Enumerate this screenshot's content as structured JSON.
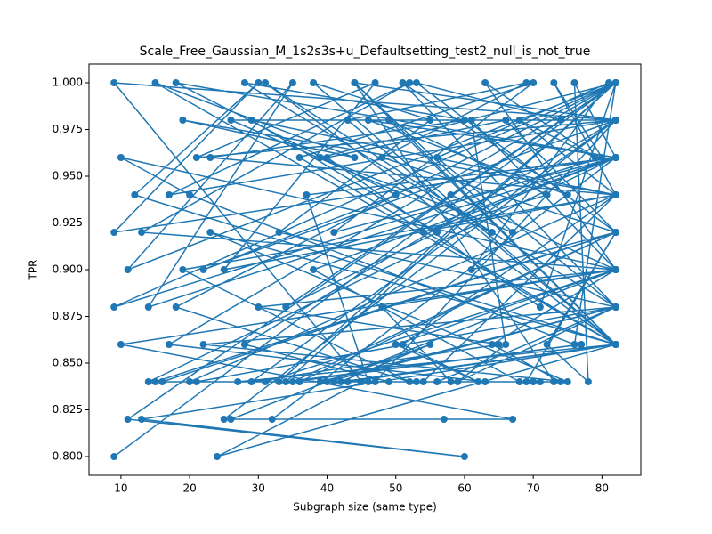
{
  "chart_data": {
    "type": "line",
    "title": "Scale_Free_Gaussian_M_1s2s3s+u_Defaultsetting_test2_null_is_not_true",
    "xlabel": "Subgraph size (same type)",
    "ylabel": "TPR",
    "xlim": [
      5.35,
      85.65
    ],
    "ylim": [
      0.79,
      1.01
    ],
    "xticks": [
      10,
      20,
      30,
      40,
      50,
      60,
      70,
      80
    ],
    "yticks": [
      {
        "value": 0.8,
        "label": "0.800"
      },
      {
        "value": 0.825,
        "label": "0.825"
      },
      {
        "value": 0.85,
        "label": "0.850"
      },
      {
        "value": 0.875,
        "label": "0.875"
      },
      {
        "value": 0.9,
        "label": "0.900"
      },
      {
        "value": 0.925,
        "label": "0.925"
      },
      {
        "value": 0.95,
        "label": "0.950"
      },
      {
        "value": 0.975,
        "label": "0.975"
      },
      {
        "value": 1.0,
        "label": "1.000"
      }
    ],
    "series": [
      {
        "color": "#1f77b4",
        "x": [
          9,
          82,
          11,
          60,
          13,
          82,
          24,
          45,
          9,
          82,
          25,
          67,
          10,
          82,
          26,
          57,
          32,
          82,
          14,
          70,
          15,
          82,
          16,
          63,
          17,
          82,
          18,
          52,
          19,
          82,
          20,
          41,
          21,
          82,
          22,
          75,
          23,
          82,
          27,
          49,
          28,
          82,
          29,
          65,
          30,
          82,
          31,
          53,
          33,
          82,
          34,
          77,
          35,
          82,
          36,
          46,
          37,
          82,
          38,
          68,
          39,
          82,
          40,
          55,
          42,
          82,
          43,
          73,
          44,
          82,
          47,
          58,
          48,
          82,
          50,
          62,
          51,
          82,
          54,
          71,
          56,
          82,
          59,
          66,
          61,
          82,
          64,
          74,
          69,
          82,
          72,
          78,
          76,
          82,
          9,
          30,
          12,
          82,
          15,
          44,
          19,
          82,
          23,
          60,
          28,
          82,
          33,
          55,
          38,
          82,
          43,
          69,
          48,
          82,
          53,
          74,
          58,
          82,
          63,
          79,
          68,
          82,
          73,
          80,
          9,
          82,
          11,
          35,
          14,
          82,
          18,
          50,
          22,
          82,
          26,
          64,
          31,
          82,
          36,
          70,
          41,
          82,
          46,
          75,
          51,
          82,
          56,
          81,
          61,
          82,
          66,
          40,
          71,
          82,
          76,
          20,
          10,
          82,
          13,
          52,
          17,
          82,
          21,
          47,
          25,
          82,
          29,
          56,
          34,
          82,
          39,
          67,
          44,
          82,
          49,
          72,
          54,
          82
        ],
        "values": [
          0.8,
          1.0,
          0.82,
          0.8,
          0.82,
          0.86,
          0.8,
          0.84,
          1.0,
          0.98,
          0.82,
          0.82,
          0.86,
          0.9,
          0.82,
          0.82,
          0.82,
          0.96,
          0.84,
          0.84,
          0.84,
          0.92,
          0.84,
          0.84,
          0.86,
          1.0,
          0.88,
          0.84,
          0.9,
          0.94,
          0.84,
          0.84,
          0.84,
          0.88,
          0.86,
          0.84,
          0.92,
          0.86,
          0.84,
          0.84,
          0.86,
          0.98,
          0.84,
          0.86,
          0.88,
          0.9,
          0.84,
          0.84,
          0.84,
          1.0,
          0.84,
          0.86,
          0.84,
          0.92,
          0.84,
          0.84,
          0.94,
          0.96,
          0.9,
          0.84,
          0.84,
          0.88,
          0.84,
          0.86,
          0.84,
          0.86,
          0.84,
          0.84,
          1.0,
          0.98,
          0.84,
          0.84,
          0.88,
          0.9,
          0.86,
          0.84,
          0.86,
          0.94,
          0.84,
          0.84,
          0.84,
          0.88,
          0.84,
          0.86,
          0.98,
          0.9,
          0.86,
          0.84,
          0.84,
          0.92,
          0.86,
          0.84,
          1.0,
          0.96,
          0.92,
          1.0,
          0.94,
          0.86,
          1.0,
          0.96,
          0.98,
          0.94,
          0.96,
          0.98,
          1.0,
          0.88,
          0.92,
          0.98,
          1.0,
          0.86,
          0.98,
          1.0,
          0.96,
          0.92,
          1.0,
          0.98,
          0.94,
          0.9,
          1.0,
          0.96,
          0.98,
          0.94,
          1.0,
          0.96,
          0.88,
          1.0,
          0.9,
          1.0,
          0.88,
          0.96,
          1.0,
          0.94,
          0.9,
          0.98,
          0.98,
          0.92,
          1.0,
          0.86,
          0.96,
          1.0,
          0.92,
          0.96,
          0.98,
          0.94,
          1.0,
          0.88,
          0.96,
          1.0,
          0.9,
          0.92,
          0.98,
          0.96,
          0.88,
          1.0,
          0.86,
          0.94,
          0.96,
          0.9,
          0.92,
          1.0,
          0.94,
          0.98,
          0.96,
          1.0,
          0.9,
          0.94,
          0.98,
          0.92,
          0.88,
          1.0,
          0.96,
          0.92,
          1.0,
          0.86,
          0.98,
          0.94,
          0.92,
          0.96
        ]
      }
    ]
  }
}
